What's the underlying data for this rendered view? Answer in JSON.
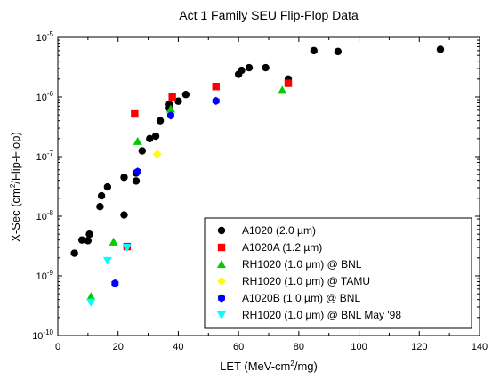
{
  "chart_data": {
    "type": "scatter",
    "title": "Act 1 Family SEU Flip-Flop Data",
    "xlabel": {
      "pre": "LET (MeV-cm",
      "sup": "2",
      "post": "/mg)"
    },
    "ylabel": {
      "pre": "X-Sec (cm",
      "sup": "2",
      "post": "/Flip-Flop)"
    },
    "xlim": [
      0,
      140
    ],
    "ylim": [
      1e-10,
      1e-05
    ],
    "yscale": "log",
    "x_ticks": [
      0,
      20,
      40,
      60,
      80,
      100,
      120,
      140
    ],
    "y_ticks": [
      {
        "value": 1e-10,
        "base": "10",
        "exp": "-10"
      },
      {
        "value": 1e-09,
        "base": "10",
        "exp": "-9"
      },
      {
        "value": 1e-08,
        "base": "10",
        "exp": "-8"
      },
      {
        "value": 1e-07,
        "base": "10",
        "exp": "-7"
      },
      {
        "value": 1e-06,
        "base": "10",
        "exp": "-6"
      },
      {
        "value": 1e-05,
        "base": "10",
        "exp": "-5"
      }
    ],
    "grid": false,
    "legend_position": "bottom-right",
    "series": [
      {
        "name": "A1020 (2.0 µm)",
        "marker": "circle",
        "color": "#000000",
        "points": [
          [
            5.5,
            2.4e-09
          ],
          [
            8,
            4e-09
          ],
          [
            10,
            3.9e-09
          ],
          [
            10.5,
            5e-09
          ],
          [
            14,
            1.45e-08
          ],
          [
            14.5,
            2.2e-08
          ],
          [
            16.5,
            3.1e-08
          ],
          [
            22,
            1.05e-08
          ],
          [
            22,
            4.5e-08
          ],
          [
            26,
            5.3e-08
          ],
          [
            26,
            3.9e-08
          ],
          [
            28,
            1.25e-07
          ],
          [
            30.5,
            2e-07
          ],
          [
            32.5,
            2.2e-07
          ],
          [
            34,
            4e-07
          ],
          [
            37,
            6.5e-07
          ],
          [
            37,
            7.5e-07
          ],
          [
            40,
            8.5e-07
          ],
          [
            42.5,
            1.1e-06
          ],
          [
            60,
            2.4e-06
          ],
          [
            61,
            2.8e-06
          ],
          [
            63.5,
            3.1e-06
          ],
          [
            69,
            3.1e-06
          ],
          [
            76.5,
            2e-06
          ],
          [
            85,
            6e-06
          ],
          [
            93,
            5.8e-06
          ],
          [
            127,
            6.3e-06
          ]
        ]
      },
      {
        "name": "A1020A (1.2 µm)",
        "marker": "square",
        "color": "#ff0000",
        "points": [
          [
            23,
            3.1e-09
          ],
          [
            25.5,
            5.2e-07
          ],
          [
            38,
            1e-06
          ],
          [
            52.5,
            1.5e-06
          ],
          [
            76.5,
            1.7e-06
          ]
        ]
      },
      {
        "name": "RH1020 (1.0 µm) @ BNL",
        "marker": "triangle-up",
        "color": "#00cc00",
        "points": [
          [
            11,
            4.5e-10
          ],
          [
            18.5,
            3.7e-09
          ],
          [
            26.5,
            1.8e-07
          ],
          [
            37.5,
            6.3e-07
          ],
          [
            74.5,
            1.3e-06
          ]
        ]
      },
      {
        "name": "RH1020 (1.0 µm) @ TAMU",
        "marker": "diamond",
        "color": "#ffff00",
        "points": [
          [
            33,
            1.1e-07
          ]
        ]
      },
      {
        "name": "A1020B (1.0 µm) @ BNL",
        "marker": "hexagon",
        "color": "#0000ff",
        "points": [
          [
            19,
            7.5e-10
          ],
          [
            26.5,
            5.6e-08
          ],
          [
            37.5,
            4.9e-07
          ],
          [
            52.5,
            8.6e-07
          ]
        ]
      },
      {
        "name": "RH1020 (1.0 µm) @ BNL May '98",
        "marker": "triangle-down",
        "color": "#00ffff",
        "points": [
          [
            11,
            3.6e-10
          ],
          [
            16.5,
            1.8e-09
          ],
          [
            23,
            3e-09
          ]
        ]
      }
    ]
  }
}
